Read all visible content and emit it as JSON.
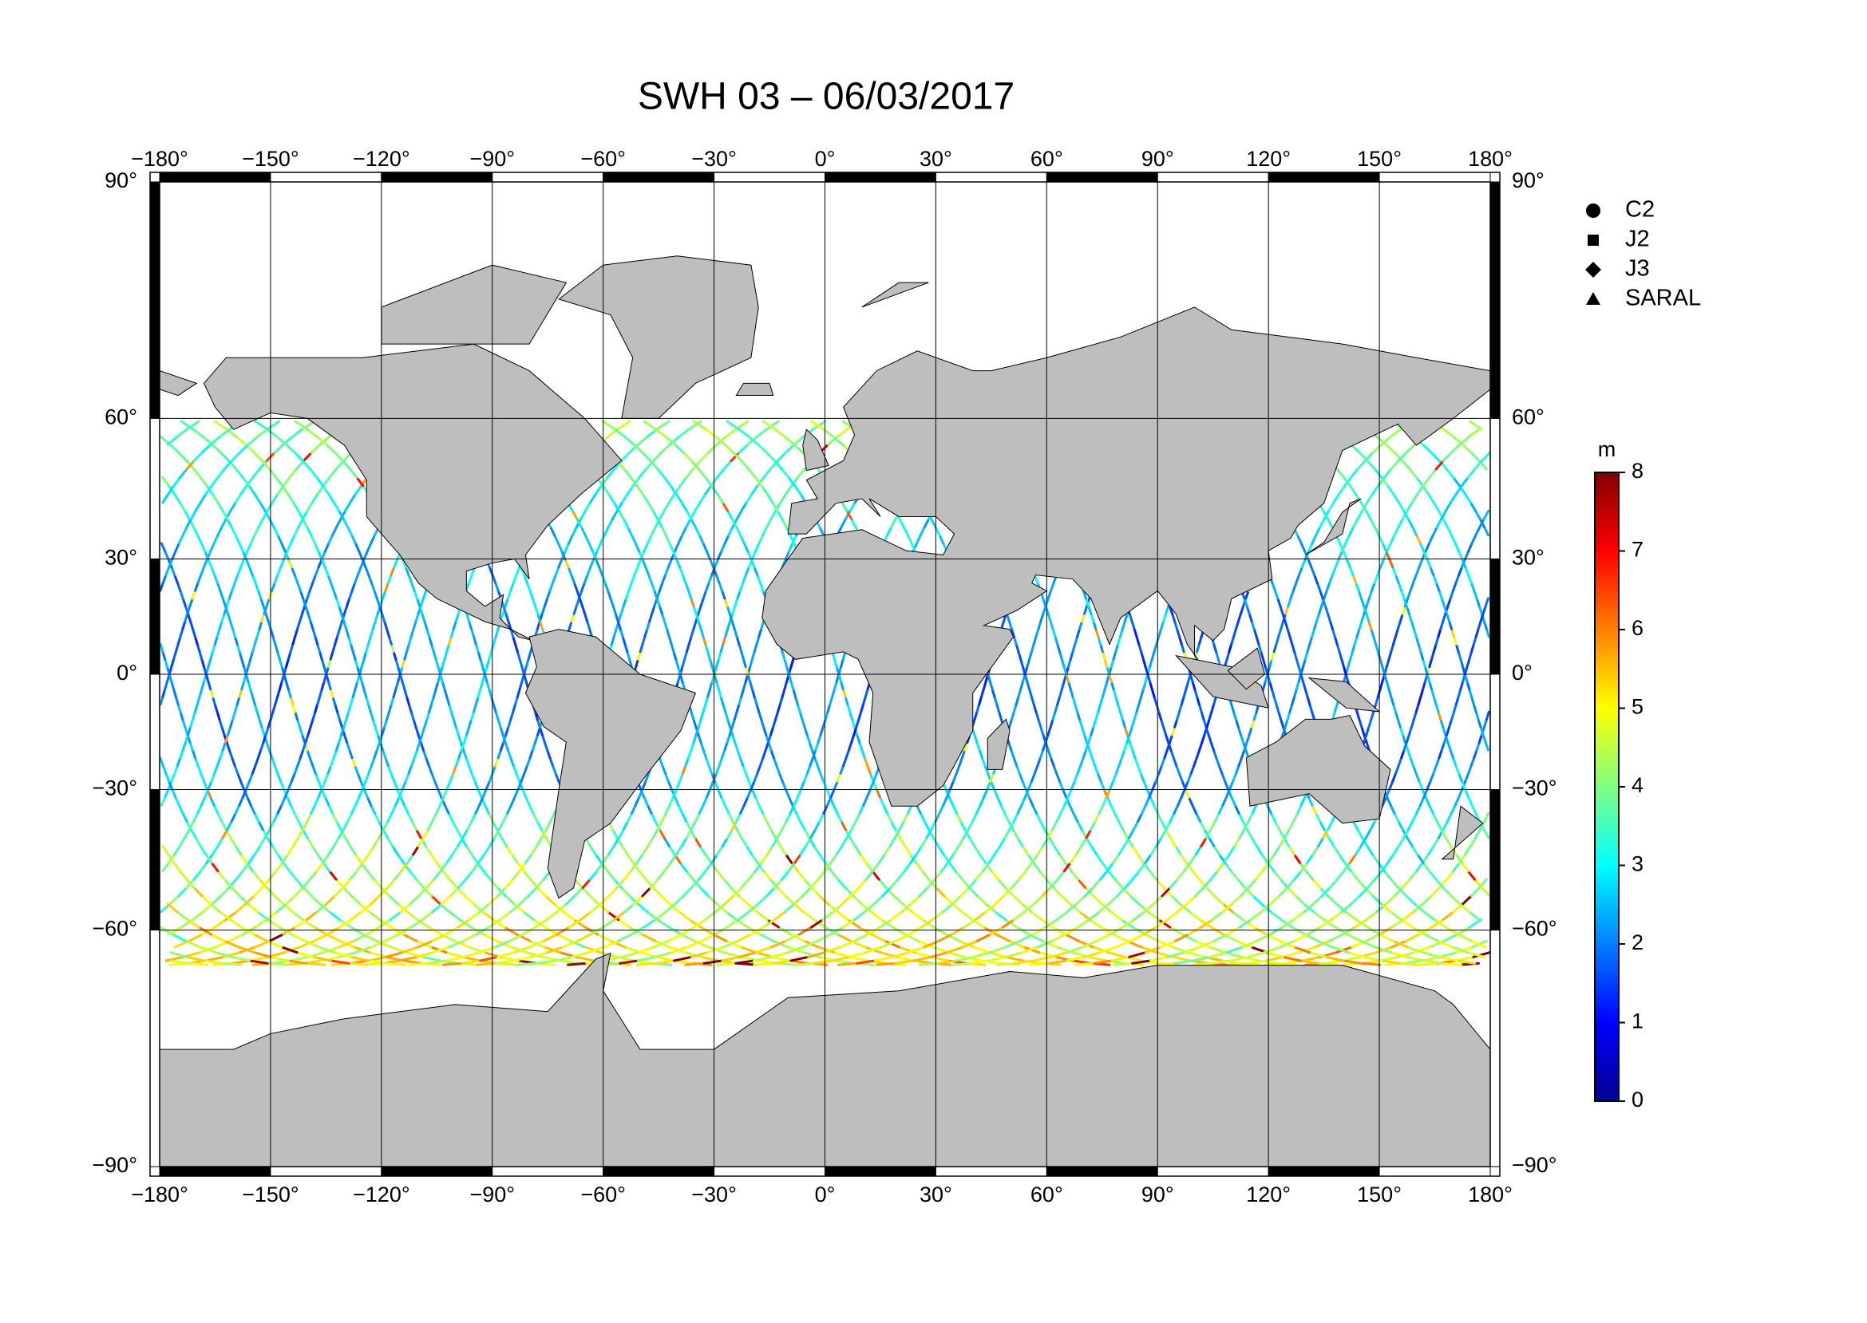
{
  "title": "SWH 03 – 06/03/2017",
  "map": {
    "projection": "miller",
    "xlim": [
      -180,
      180
    ],
    "ylim": [
      -90,
      90
    ],
    "grid": true,
    "land_color": "#bebebe",
    "xticks": [
      {
        "value": -180,
        "label": "−180°"
      },
      {
        "value": -150,
        "label": "−150°"
      },
      {
        "value": -120,
        "label": "−120°"
      },
      {
        "value": -90,
        "label": "−90°"
      },
      {
        "value": -60,
        "label": "−60°"
      },
      {
        "value": -30,
        "label": "−30°"
      },
      {
        "value": 0,
        "label": "0°"
      },
      {
        "value": 30,
        "label": "30°"
      },
      {
        "value": 60,
        "label": "60°"
      },
      {
        "value": 90,
        "label": "90°"
      },
      {
        "value": 120,
        "label": "120°"
      },
      {
        "value": 150,
        "label": "150°"
      },
      {
        "value": 180,
        "label": "180°"
      }
    ],
    "yticks": [
      {
        "value": 90,
        "label": "90°"
      },
      {
        "value": 60,
        "label": "60°"
      },
      {
        "value": 30,
        "label": "30°"
      },
      {
        "value": 0,
        "label": "0°"
      },
      {
        "value": -30,
        "label": "−30°"
      },
      {
        "value": -60,
        "label": "−60°"
      },
      {
        "value": -90,
        "label": "−90°"
      }
    ]
  },
  "legend": {
    "items": [
      {
        "label": "C2",
        "marker": "circle"
      },
      {
        "label": "J2",
        "marker": "square"
      },
      {
        "label": "J3",
        "marker": "diamond"
      },
      {
        "label": "SARAL",
        "marker": "triangle"
      }
    ]
  },
  "colorbar": {
    "unit": "m",
    "colormap": "jet",
    "lim": [
      0,
      8
    ],
    "ticks": [
      0,
      1,
      2,
      3,
      4,
      5,
      6,
      7,
      8
    ]
  }
}
